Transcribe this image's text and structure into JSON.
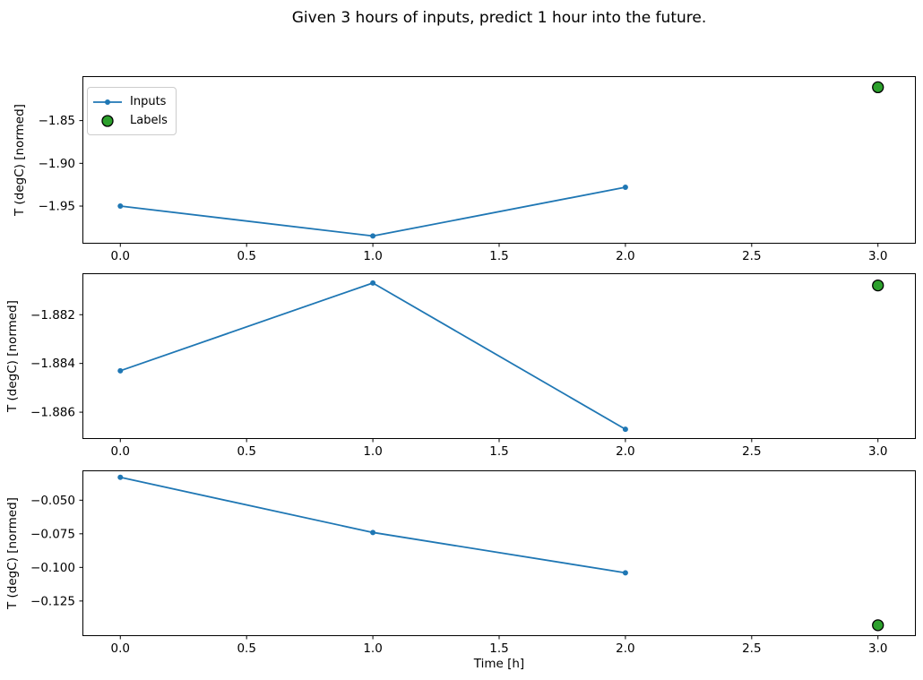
{
  "figure": {
    "title": "Given 3 hours of inputs, predict 1 hour into the future.",
    "xlabel": "Time [h]",
    "ylabel": "T (degC) [normed]",
    "background_color": "#ffffff",
    "spine_color": "#000000",
    "colors": {
      "inputs": "#1f77b4",
      "labels_fill": "#2ca02c",
      "labels_edge": "#000000"
    },
    "legend": {
      "position": "upper-left-subplot-1",
      "items": [
        {
          "label": "Inputs",
          "type": "line-marker",
          "color": "#1f77b4"
        },
        {
          "label": "Labels",
          "type": "circle-marker",
          "color": "#2ca02c",
          "edge": "#000000"
        }
      ]
    }
  },
  "chart_data": [
    {
      "type": "line",
      "subplot": 1,
      "ylabel": "T (degC) [normed]",
      "xlim": [
        -0.15,
        3.15
      ],
      "ylim": [
        -1.994,
        -1.798
      ],
      "xticks": [
        0.0,
        0.5,
        1.0,
        1.5,
        2.0,
        2.5,
        3.0
      ],
      "xticklabels": [
        "0.0",
        "0.5",
        "1.0",
        "1.5",
        "2.0",
        "2.5",
        "3.0"
      ],
      "yticks": [
        -1.85,
        -1.9,
        -1.95
      ],
      "yticklabels": [
        "−1.85",
        "−1.90",
        "−1.95"
      ],
      "series": [
        {
          "name": "Inputs",
          "style": "line-marker",
          "color": "#1f77b4",
          "x": [
            0,
            1,
            2
          ],
          "y": [
            -1.95,
            -1.985,
            -1.928
          ]
        },
        {
          "name": "Labels",
          "style": "circle-marker",
          "color": "#2ca02c",
          "edge": "#000000",
          "x": [
            3
          ],
          "y": [
            -1.811
          ]
        }
      ]
    },
    {
      "type": "line",
      "subplot": 2,
      "ylabel": "T (degC) [normed]",
      "xlim": [
        -0.15,
        3.15
      ],
      "ylim": [
        -1.8871,
        -1.8803
      ],
      "xticks": [
        0.0,
        0.5,
        1.0,
        1.5,
        2.0,
        2.5,
        3.0
      ],
      "xticklabels": [
        "0.0",
        "0.5",
        "1.0",
        "1.5",
        "2.0",
        "2.5",
        "3.0"
      ],
      "yticks": [
        -1.882,
        -1.884,
        -1.886
      ],
      "yticklabels": [
        "−1.882",
        "−1.884",
        "−1.886"
      ],
      "series": [
        {
          "name": "Inputs",
          "style": "line-marker",
          "color": "#1f77b4",
          "x": [
            0,
            1,
            2
          ],
          "y": [
            -1.8843,
            -1.8807,
            -1.8867
          ]
        },
        {
          "name": "Labels",
          "style": "circle-marker",
          "color": "#2ca02c",
          "edge": "#000000",
          "x": [
            3
          ],
          "y": [
            -1.8808
          ]
        }
      ]
    },
    {
      "type": "line",
      "subplot": 3,
      "ylabel": "T (degC) [normed]",
      "xlim": [
        -0.15,
        3.15
      ],
      "ylim": [
        -0.1511,
        -0.0278
      ],
      "xticks": [
        0.0,
        0.5,
        1.0,
        1.5,
        2.0,
        2.5,
        3.0
      ],
      "xticklabels": [
        "0.0",
        "0.5",
        "1.0",
        "1.5",
        "2.0",
        "2.5",
        "3.0"
      ],
      "yticks": [
        -0.05,
        -0.075,
        -0.1,
        -0.125
      ],
      "yticklabels": [
        "−0.050",
        "−0.075",
        "−0.100",
        "−0.125"
      ],
      "series": [
        {
          "name": "Inputs",
          "style": "line-marker",
          "color": "#1f77b4",
          "x": [
            0,
            1,
            2
          ],
          "y": [
            -0.033,
            -0.074,
            -0.104
          ]
        },
        {
          "name": "Labels",
          "style": "circle-marker",
          "color": "#2ca02c",
          "edge": "#000000",
          "x": [
            3
          ],
          "y": [
            -0.143
          ]
        }
      ]
    }
  ]
}
